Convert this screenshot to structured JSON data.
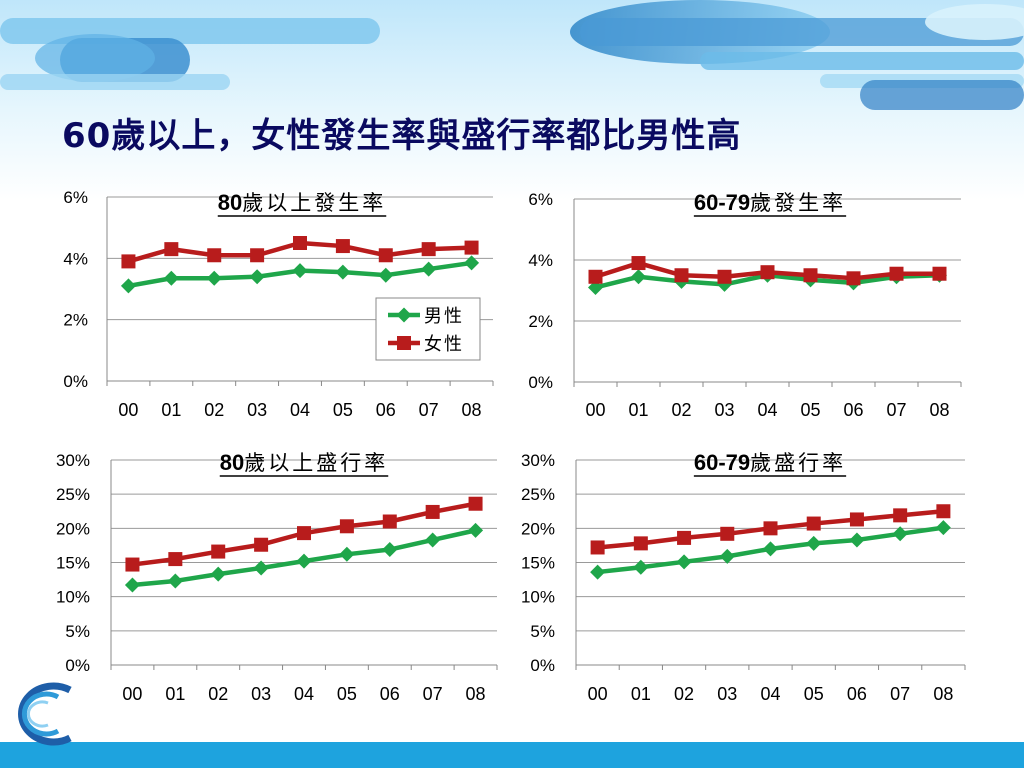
{
  "slide": {
    "title": "60歲以上，女性發生率與盛行率都比男性高"
  },
  "colors": {
    "male": "#1fa64a",
    "female": "#b81c1c",
    "title": "#0a0a60",
    "accent": "#1ea3de"
  },
  "chart_data": [
    {
      "type": "line",
      "title_num": "80",
      "title_text": "歲以上發生率",
      "categories": [
        "00",
        "01",
        "02",
        "03",
        "04",
        "05",
        "06",
        "07",
        "08"
      ],
      "yticks": [
        "0%",
        "2%",
        "4%",
        "6%"
      ],
      "ylim": [
        0,
        6
      ],
      "grid": true,
      "legend": "center-right",
      "series": [
        {
          "name": "男性",
          "values": [
            3.1,
            3.35,
            3.35,
            3.4,
            3.6,
            3.55,
            3.45,
            3.65,
            3.85
          ]
        },
        {
          "name": "女性",
          "values": [
            3.9,
            4.3,
            4.1,
            4.1,
            4.5,
            4.4,
            4.1,
            4.3,
            4.35
          ]
        }
      ]
    },
    {
      "type": "line",
      "title_num": "60-79",
      "title_text": "歲發生率",
      "categories": [
        "00",
        "01",
        "02",
        "03",
        "04",
        "05",
        "06",
        "07",
        "08"
      ],
      "yticks": [
        "0%",
        "2%",
        "4%",
        "6%"
      ],
      "ylim": [
        0,
        6
      ],
      "grid": true,
      "series": [
        {
          "name": "男性",
          "values": [
            3.1,
            3.45,
            3.3,
            3.2,
            3.5,
            3.35,
            3.25,
            3.45,
            3.5
          ]
        },
        {
          "name": "女性",
          "values": [
            3.45,
            3.9,
            3.5,
            3.45,
            3.6,
            3.5,
            3.4,
            3.55,
            3.55
          ]
        }
      ]
    },
    {
      "type": "line",
      "title_num": "80",
      "title_text": "歲以上盛行率",
      "categories": [
        "00",
        "01",
        "02",
        "03",
        "04",
        "05",
        "06",
        "07",
        "08"
      ],
      "yticks": [
        "0%",
        "5%",
        "10%",
        "15%",
        "20%",
        "25%",
        "30%"
      ],
      "ylim": [
        0,
        30
      ],
      "grid": true,
      "series": [
        {
          "name": "男性",
          "values": [
            11.7,
            12.3,
            13.3,
            14.2,
            15.2,
            16.2,
            16.9,
            18.3,
            19.7
          ]
        },
        {
          "name": "女性",
          "values": [
            14.7,
            15.5,
            16.6,
            17.6,
            19.3,
            20.3,
            21.0,
            22.4,
            23.6
          ]
        }
      ]
    },
    {
      "type": "line",
      "title_num": "60-79",
      "title_text": "歲盛行率",
      "categories": [
        "00",
        "01",
        "02",
        "03",
        "04",
        "05",
        "06",
        "07",
        "08"
      ],
      "yticks": [
        "0%",
        "5%",
        "10%",
        "15%",
        "20%",
        "25%",
        "30%"
      ],
      "ylim": [
        0,
        30
      ],
      "grid": true,
      "series": [
        {
          "name": "男性",
          "values": [
            13.6,
            14.3,
            15.1,
            15.9,
            17.0,
            17.8,
            18.3,
            19.2,
            20.1
          ]
        },
        {
          "name": "女性",
          "values": [
            17.2,
            17.8,
            18.6,
            19.2,
            20.0,
            20.7,
            21.3,
            21.9,
            22.5
          ]
        }
      ]
    }
  ]
}
